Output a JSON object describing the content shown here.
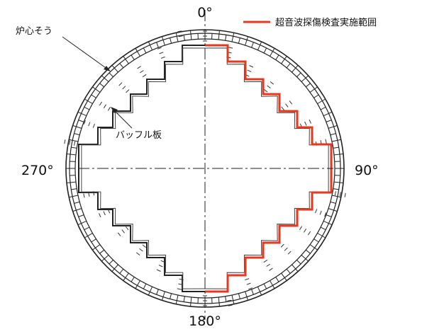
{
  "angles": {
    "top": "0°",
    "right": "90°",
    "bottom": "180°",
    "left": "270°"
  },
  "labels": {
    "core_barrel": "炉心そう",
    "baffle_plate": "バッフル板"
  },
  "legend": {
    "label": "超音波探傷検査実施範囲",
    "color": "#e8371c"
  },
  "colors": {
    "line": "#222222",
    "highlight": "#e8371c"
  }
}
